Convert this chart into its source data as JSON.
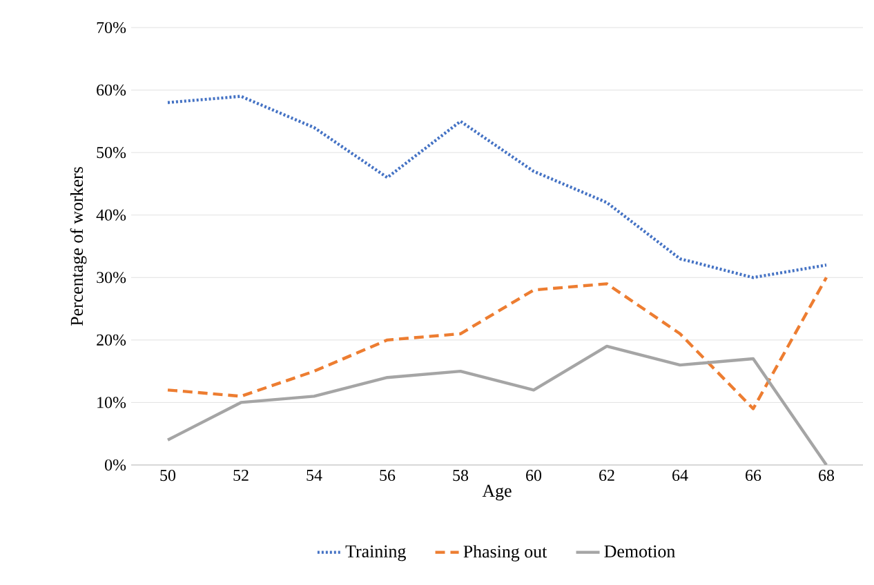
{
  "chart_data": {
    "type": "line",
    "xlabel": "Age",
    "ylabel": "Percentage of workers",
    "categories": [
      "50",
      "52",
      "54",
      "56",
      "58",
      "60",
      "62",
      "64",
      "66",
      "68"
    ],
    "series": [
      {
        "name": "Training",
        "color": "#4472c4",
        "line_style": "dotted",
        "values": [
          58,
          59,
          54,
          46,
          55,
          47,
          42,
          33,
          30,
          32
        ]
      },
      {
        "name": "Phasing out",
        "color": "#ed7d31",
        "line_style": "dashed",
        "values": [
          12,
          11,
          15,
          20,
          21,
          28,
          29,
          21,
          9,
          30
        ]
      },
      {
        "name": "Demotion",
        "color": "#a5a5a5",
        "line_style": "solid",
        "values": [
          4,
          10,
          11,
          14,
          15,
          12,
          19,
          16,
          17,
          0
        ]
      }
    ],
    "ylim": [
      0,
      70
    ],
    "yticks": [
      {
        "value": 0,
        "label": "0%"
      },
      {
        "value": 10,
        "label": "10%"
      },
      {
        "value": 20,
        "label": "20%"
      },
      {
        "value": 30,
        "label": "30%"
      },
      {
        "value": 40,
        "label": "40%"
      },
      {
        "value": 50,
        "label": "50%"
      },
      {
        "value": 60,
        "label": "60%"
      },
      {
        "value": 70,
        "label": "70%"
      }
    ],
    "grid": "y",
    "legend": "bottom"
  }
}
